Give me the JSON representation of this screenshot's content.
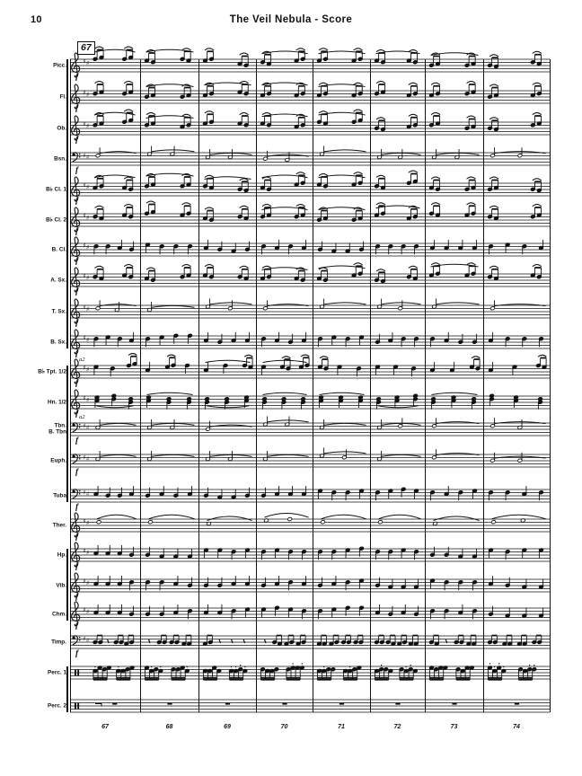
{
  "page": {
    "number": "10",
    "title": "The Veil Nebula - Score",
    "rehearsal_mark": "67"
  },
  "score": {
    "measure_numbers": [
      "67",
      "68",
      "69",
      "70",
      "71",
      "72",
      "73",
      "74"
    ],
    "dynamic_forte": "f",
    "a2_label": "a2",
    "staves": [
      {
        "label": "Picc.",
        "clef": "treble",
        "style": "slur8",
        "forte": true,
        "a2": false
      },
      {
        "label": "Fl.",
        "clef": "treble",
        "style": "slur8",
        "forte": true,
        "a2": false
      },
      {
        "label": "Ob.",
        "clef": "treble",
        "style": "slur8",
        "forte": true,
        "a2": false
      },
      {
        "label": "Bsn.",
        "clef": "bass",
        "style": "sustained",
        "forte": true,
        "a2": false
      },
      {
        "label": "B♭ Cl. 1",
        "clef": "treble",
        "style": "slur8",
        "forte": true,
        "a2": false
      },
      {
        "label": "B♭ Cl. 2",
        "clef": "treble",
        "style": "slur8",
        "forte": true,
        "a2": false
      },
      {
        "label": "B. Cl.",
        "clef": "treble",
        "style": "quarters",
        "forte": true,
        "a2": false
      },
      {
        "label": "A. Sx.",
        "clef": "treble",
        "style": "slur8",
        "forte": true,
        "a2": false
      },
      {
        "label": "T. Sx.",
        "clef": "treble",
        "style": "sustained",
        "forte": true,
        "a2": false
      },
      {
        "label": "B. Sx.",
        "clef": "treble",
        "style": "quarters",
        "forte": true,
        "a2": false
      },
      {
        "label": "B♭ Tpt. 1/2",
        "clef": "treble",
        "style": "melody",
        "forte": true,
        "a2": true
      },
      {
        "label": "Hn. 1/2",
        "clef": "treble",
        "style": "chords",
        "forte": true,
        "a2": false
      },
      {
        "label": "Tbn.\nB. Tbn",
        "clef": "bass",
        "style": "sustained",
        "forte": true,
        "a2": true
      },
      {
        "label": "Euph.",
        "clef": "bass",
        "style": "sustained",
        "forte": true,
        "a2": false
      },
      {
        "label": "Tuba",
        "clef": "bass",
        "style": "quarters",
        "forte": true,
        "a2": false
      },
      {
        "label": "Ther.",
        "clef": "treble",
        "style": "longslur",
        "forte": true,
        "a2": false
      },
      {
        "label": "Hp.",
        "clef": "treble",
        "style": "quarters",
        "forte": true,
        "a2": false
      },
      {
        "label": "Vib.",
        "clef": "treble",
        "style": "quarters",
        "forte": true,
        "a2": false
      },
      {
        "label": "Chm.",
        "clef": "treble",
        "style": "quarters",
        "forte": true,
        "a2": false
      },
      {
        "label": "Timp.",
        "clef": "bass",
        "style": "rhythm8",
        "forte": true,
        "a2": false
      },
      {
        "label": "Perc. 1",
        "clef": "perc",
        "style": "rhythm16",
        "forte": false,
        "a2": false
      },
      {
        "label": "Perc. 2",
        "clef": "perc",
        "style": "rests",
        "forte": false,
        "a2": false
      }
    ]
  }
}
